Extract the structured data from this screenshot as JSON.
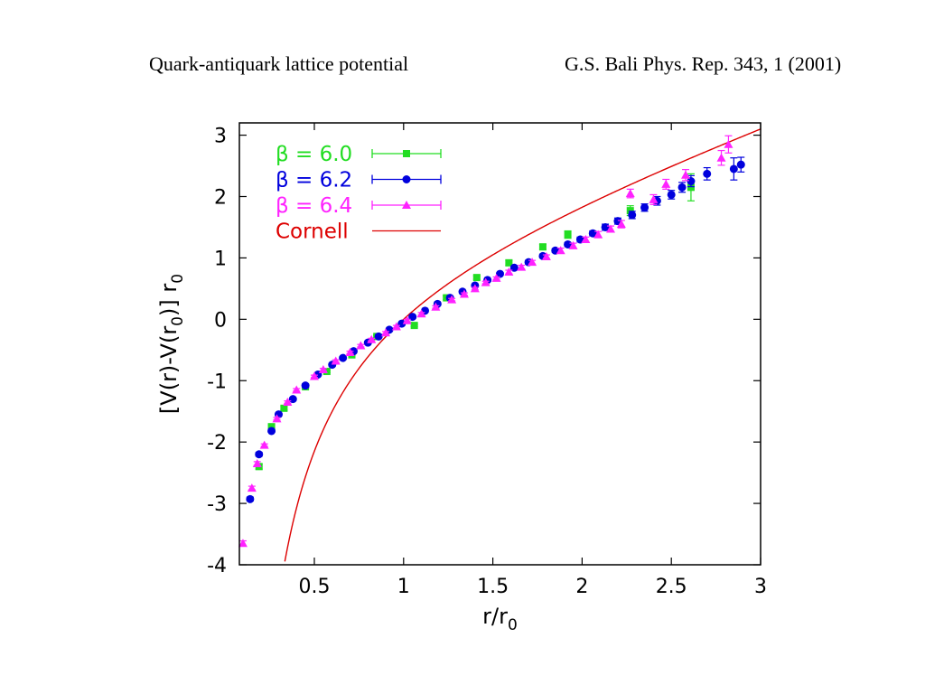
{
  "header": {
    "left": "Quark-antiquark lattice potential",
    "right": "G.S. Bali Phys. Rep. 343, 1 (2001)"
  },
  "chart_data": {
    "type": "scatter",
    "title": "",
    "xlabel": "r/r",
    "xlabel_sub": "0",
    "ylabel_parts": [
      "[V(r)-V(r",
      "0",
      ")] r",
      "0"
    ],
    "xlim": [
      0.08,
      3.0
    ],
    "ylim": [
      -4,
      3.2
    ],
    "xticks": [
      0.5,
      1,
      1.5,
      2,
      2.5,
      3
    ],
    "xtick_labels": [
      "0.5",
      "1",
      "1.5",
      "2",
      "2.5",
      "3"
    ],
    "yticks": [
      -4,
      -3,
      -2,
      -1,
      0,
      1,
      2,
      3
    ],
    "ytick_labels": [
      "-4",
      "-3",
      "-2",
      "-1",
      "0",
      "1",
      "2",
      "3"
    ],
    "grid": false,
    "legend_position": "top-left",
    "series": [
      {
        "name": "β = 6.0",
        "color": "#22dd22",
        "marker": "square",
        "x": [
          0.19,
          0.26,
          0.33,
          0.45,
          0.57,
          0.71,
          0.85,
          1.06,
          1.24,
          1.41,
          1.59,
          1.78,
          1.92,
          2.27,
          2.61
        ],
        "y": [
          -2.4,
          -1.75,
          -1.45,
          -1.1,
          -0.85,
          -0.58,
          -0.28,
          -0.1,
          0.35,
          0.68,
          0.92,
          1.18,
          1.38,
          1.77,
          2.15
        ],
        "err": [
          0.04,
          0.03,
          0.03,
          0.02,
          0.02,
          0.02,
          0.02,
          0.02,
          0.03,
          0.03,
          0.04,
          0.04,
          0.06,
          0.08,
          0.22
        ]
      },
      {
        "name": "β = 6.2",
        "color": "#0000dd",
        "marker": "circle",
        "x": [
          0.14,
          0.19,
          0.26,
          0.3,
          0.38,
          0.45,
          0.52,
          0.6,
          0.66,
          0.72,
          0.8,
          0.86,
          0.92,
          0.99,
          1.05,
          1.12,
          1.19,
          1.26,
          1.33,
          1.4,
          1.47,
          1.54,
          1.62,
          1.7,
          1.78,
          1.85,
          1.92,
          1.99,
          2.06,
          2.13,
          2.2,
          2.28,
          2.35,
          2.42,
          2.5,
          2.56,
          2.61,
          2.7,
          2.85,
          2.89
        ],
        "y": [
          -2.93,
          -2.2,
          -1.82,
          -1.55,
          -1.3,
          -1.08,
          -0.9,
          -0.74,
          -0.63,
          -0.52,
          -0.38,
          -0.28,
          -0.17,
          -0.07,
          0.04,
          0.14,
          0.25,
          0.35,
          0.45,
          0.55,
          0.64,
          0.74,
          0.84,
          0.93,
          1.03,
          1.12,
          1.22,
          1.3,
          1.4,
          1.5,
          1.6,
          1.7,
          1.82,
          1.93,
          2.03,
          2.15,
          2.25,
          2.37,
          2.45,
          2.52
        ],
        "err": [
          0.03,
          0.03,
          0.02,
          0.02,
          0.02,
          0.02,
          0.02,
          0.02,
          0.02,
          0.02,
          0.02,
          0.02,
          0.02,
          0.02,
          0.02,
          0.02,
          0.02,
          0.02,
          0.02,
          0.02,
          0.02,
          0.02,
          0.02,
          0.03,
          0.03,
          0.03,
          0.03,
          0.04,
          0.04,
          0.05,
          0.05,
          0.06,
          0.06,
          0.07,
          0.07,
          0.08,
          0.09,
          0.1,
          0.18,
          0.12
        ]
      },
      {
        "name": "β = 6.4",
        "color": "#ff22ff",
        "marker": "triangle",
        "x": [
          0.1,
          0.15,
          0.18,
          0.22,
          0.29,
          0.35,
          0.4,
          0.5,
          0.55,
          0.62,
          0.7,
          0.76,
          0.82,
          0.9,
          0.96,
          1.02,
          1.1,
          1.18,
          1.27,
          1.34,
          1.4,
          1.46,
          1.52,
          1.59,
          1.66,
          1.72,
          1.8,
          1.88,
          1.95,
          2.02,
          2.09,
          2.16,
          2.22,
          2.27,
          2.4,
          2.47,
          2.58,
          2.78,
          2.82
        ],
        "y": [
          -3.65,
          -2.75,
          -2.35,
          -2.05,
          -1.62,
          -1.35,
          -1.15,
          -0.93,
          -0.82,
          -0.68,
          -0.54,
          -0.43,
          -0.33,
          -0.22,
          -0.12,
          -0.02,
          0.09,
          0.2,
          0.32,
          0.41,
          0.5,
          0.6,
          0.67,
          0.77,
          0.85,
          0.93,
          1.02,
          1.12,
          1.2,
          1.3,
          1.38,
          1.47,
          1.55,
          2.05,
          1.95,
          2.2,
          2.35,
          2.63,
          2.85
        ],
        "err": [
          0.04,
          0.03,
          0.03,
          0.02,
          0.02,
          0.02,
          0.02,
          0.02,
          0.02,
          0.02,
          0.02,
          0.02,
          0.02,
          0.02,
          0.02,
          0.02,
          0.02,
          0.02,
          0.02,
          0.02,
          0.02,
          0.02,
          0.02,
          0.03,
          0.03,
          0.03,
          0.03,
          0.04,
          0.04,
          0.04,
          0.05,
          0.05,
          0.06,
          0.07,
          0.08,
          0.08,
          0.09,
          0.12,
          0.14
        ]
      },
      {
        "name": "Cornell",
        "color": "#dd0000",
        "marker": "line",
        "function": "1.65 - 1.65/x + x - 1"
      }
    ]
  }
}
